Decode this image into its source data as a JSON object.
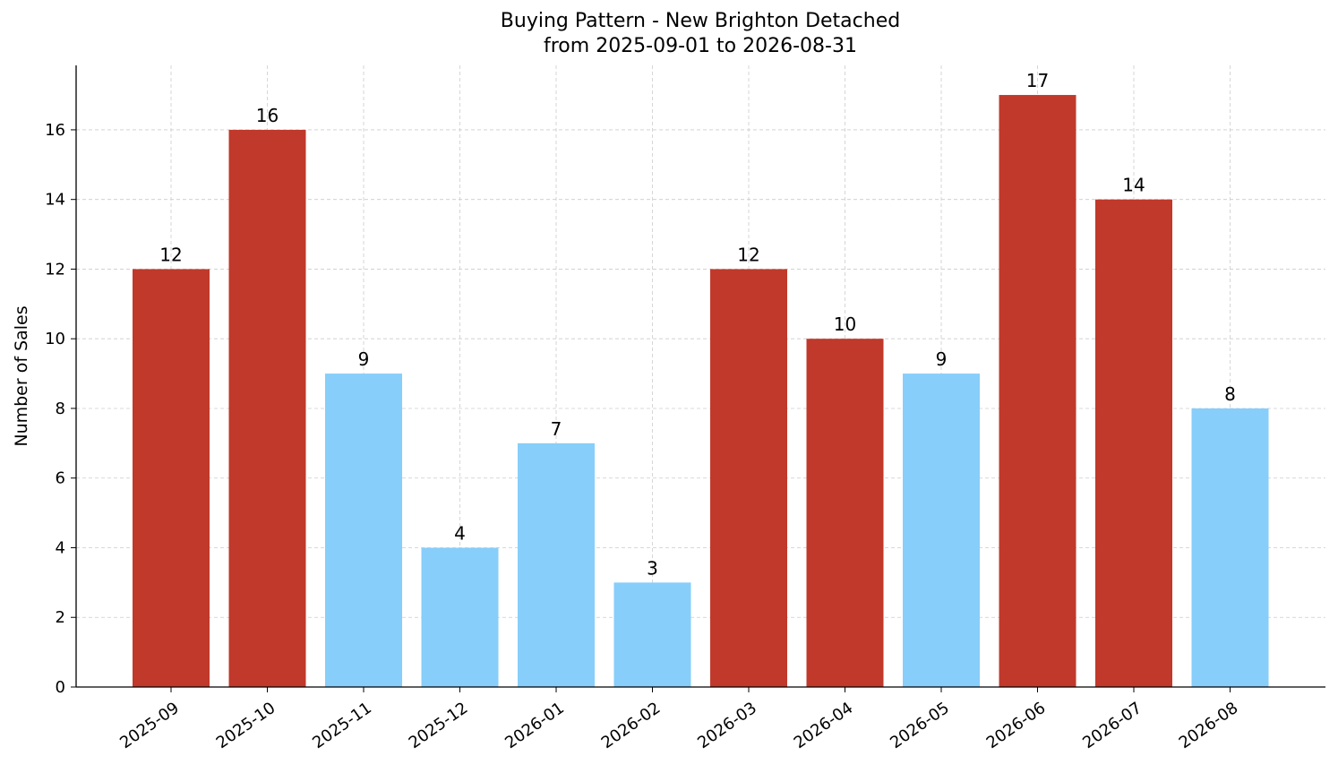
{
  "chart_data": {
    "type": "bar",
    "title": "Buying Pattern - New Brighton Detached",
    "subtitle": "from 2025-09-01 to 2026-08-31",
    "xlabel": "",
    "ylabel": "Number of Sales",
    "categories": [
      "2025-09",
      "2025-10",
      "2025-11",
      "2025-12",
      "2026-01",
      "2026-02",
      "2026-03",
      "2026-04",
      "2026-05",
      "2026-06",
      "2026-07",
      "2026-08"
    ],
    "values": [
      12,
      16,
      9,
      4,
      7,
      3,
      12,
      10,
      9,
      17,
      14,
      8
    ],
    "bar_colors": [
      "#c0392b",
      "#c0392b",
      "#87cefa",
      "#87cefa",
      "#87cefa",
      "#87cefa",
      "#c0392b",
      "#c0392b",
      "#87cefa",
      "#c0392b",
      "#c0392b",
      "#87cefa"
    ],
    "ylim": [
      0,
      17.85
    ],
    "yticks": [
      0,
      2,
      4,
      6,
      8,
      10,
      12,
      14,
      16
    ],
    "grid": true
  }
}
